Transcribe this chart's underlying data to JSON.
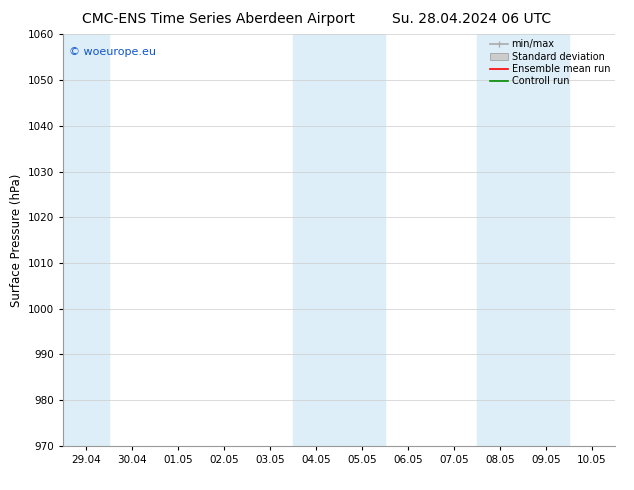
{
  "title_left": "CMC-ENS Time Series Aberdeen Airport",
  "title_right": "Su. 28.04.2024 06 UTC",
  "ylabel": "Surface Pressure (hPa)",
  "ylim": [
    970,
    1060
  ],
  "yticks": [
    970,
    980,
    990,
    1000,
    1010,
    1020,
    1030,
    1040,
    1050,
    1060
  ],
  "xtick_labels": [
    "29.04",
    "30.04",
    "01.05",
    "02.05",
    "03.05",
    "04.05",
    "05.05",
    "06.05",
    "07.05",
    "08.05",
    "09.05",
    "10.05"
  ],
  "shade_color": "#ddeef8",
  "background_color": "#ffffff",
  "watermark": "© woeurope.eu",
  "watermark_color": "#1155cc",
  "legend_entries": [
    "min/max",
    "Standard deviation",
    "Ensemble mean run",
    "Controll run"
  ],
  "legend_colors": [
    "#aaaaaa",
    "#cccccc",
    "#ff0000",
    "#008800"
  ],
  "title_fontsize": 10,
  "tick_fontsize": 7.5,
  "ylabel_fontsize": 8.5,
  "watermark_fontsize": 8,
  "legend_fontsize": 7,
  "n_xticks": 12
}
